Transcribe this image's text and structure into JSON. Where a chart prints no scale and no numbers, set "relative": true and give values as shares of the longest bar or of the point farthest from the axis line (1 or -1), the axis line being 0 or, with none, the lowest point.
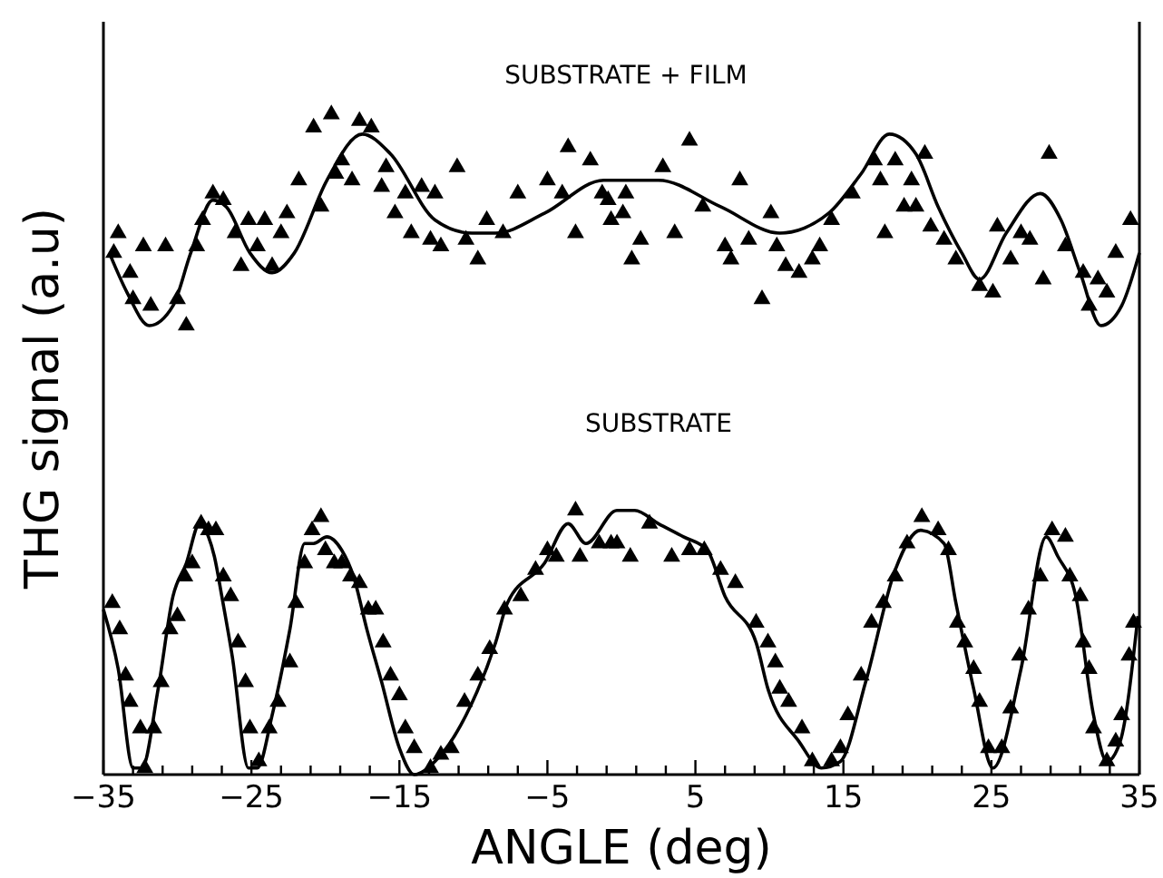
{
  "chart_data": {
    "type": "scatter",
    "xlabel": "ANGLE (deg)",
    "ylabel": "THG signal (a.u)",
    "relative": true,
    "grid": false,
    "line_style": "solid",
    "annotations": [
      "SUBSTRATE + FILM",
      "SUBSTRATE"
    ],
    "xlim": [
      -35,
      35
    ],
    "xticks": [
      -35,
      {
        "value": -33,
        "label": null
      },
      {
        "value": -31,
        "label": null
      },
      {
        "value": -29,
        "label": null
      },
      {
        "value": -27,
        "label": null
      },
      -25,
      {
        "value": -23,
        "label": null
      },
      {
        "value": -21,
        "label": null
      },
      {
        "value": -19,
        "label": null
      },
      {
        "value": -17,
        "label": null
      },
      -15,
      {
        "value": -13,
        "label": null
      },
      {
        "value": -11,
        "label": null
      },
      {
        "value": -9,
        "label": null
      },
      {
        "value": -7,
        "label": null
      },
      -5,
      {
        "value": -3,
        "label": null
      },
      {
        "value": -1,
        "label": null
      },
      {
        "value": 1,
        "label": null
      },
      {
        "value": 3,
        "label": null
      },
      5,
      {
        "value": 7,
        "label": null
      },
      {
        "value": 9,
        "label": null
      },
      {
        "value": 11,
        "label": null
      },
      {
        "value": 13,
        "label": null
      },
      15,
      {
        "value": 17,
        "label": null
      },
      {
        "value": 19,
        "label": null
      },
      {
        "value": 21,
        "label": null
      },
      {
        "value": 23,
        "label": null
      },
      25,
      {
        "value": 27,
        "label": null
      },
      {
        "value": 29,
        "label": null
      },
      {
        "value": 31,
        "label": null
      },
      {
        "value": 33,
        "label": null
      },
      35
    ],
    "series": [
      {
        "marker": "triangle",
        "color": "#000000",
        "x": [
          -34.0,
          -32.3,
          -30.8,
          -34.3,
          -33.2,
          -33.0,
          -31.8,
          -30.0,
          -29.4,
          -28.7,
          -27.6,
          -26.9,
          -28.3,
          -26.1,
          -25.2,
          -24.1,
          -25.7,
          -24.6,
          -23.6,
          -23.0,
          -22.6,
          -21.8,
          -20.3,
          -20.8,
          -19.6,
          -17.7,
          -16.9,
          -18.9,
          -19.3,
          -18.2,
          -16.2,
          -15.9,
          -15.3,
          -14.6,
          -13.5,
          -12.6,
          -14.2,
          -12.9,
          -12.2,
          -11.1,
          -10.5,
          -9.7,
          -9.1,
          -8.0,
          -7.0,
          -5.0,
          -4.0,
          -3.6,
          -3.1,
          -2.1,
          -1.3,
          -0.7,
          4.6,
          2.8,
          0.3,
          -0.9,
          0.1,
          1.3,
          0.7,
          3.6,
          5.5,
          8.0,
          7.0,
          7.4,
          8.6,
          10.1,
          10.5,
          11.1,
          12.0,
          12.9,
          13.4,
          9.5,
          14.2,
          15.6,
          17.1,
          17.5,
          18.5,
          19.6,
          19.1,
          20.5,
          19.9,
          20.9,
          17.8,
          21.8,
          22.6,
          24.2,
          25.1,
          25.4,
          26.3,
          27.0,
          27.6,
          28.9,
          28.5,
          30.0,
          31.2,
          32.2,
          31.6,
          33.4,
          34.4,
          32.8
        ],
        "values": [
          0.82,
          0.8,
          0.8,
          0.79,
          0.76,
          0.72,
          0.71,
          0.72,
          0.68,
          0.8,
          0.88,
          0.87,
          0.84,
          0.82,
          0.84,
          0.84,
          0.77,
          0.8,
          0.77,
          0.82,
          0.85,
          0.9,
          0.86,
          0.98,
          1.0,
          0.99,
          0.98,
          0.93,
          0.91,
          0.9,
          0.89,
          0.92,
          0.85,
          0.88,
          0.89,
          0.88,
          0.82,
          0.81,
          0.8,
          0.92,
          0.81,
          0.78,
          0.84,
          0.82,
          0.88,
          0.9,
          0.88,
          0.95,
          0.82,
          0.93,
          0.88,
          0.84,
          0.96,
          0.92,
          0.88,
          0.87,
          0.85,
          0.81,
          0.78,
          0.82,
          0.86,
          0.9,
          0.8,
          0.78,
          0.81,
          0.85,
          0.8,
          0.77,
          0.76,
          0.78,
          0.8,
          0.72,
          0.84,
          0.88,
          0.93,
          0.9,
          0.93,
          0.9,
          0.86,
          0.94,
          0.86,
          0.83,
          0.82,
          0.81,
          0.78,
          0.74,
          0.73,
          0.83,
          0.78,
          0.82,
          0.81,
          0.94,
          0.75,
          0.8,
          0.76,
          0.75,
          0.71,
          0.79,
          0.84,
          0.73
        ]
      },
      {
        "type": "line",
        "color": "#000000",
        "x": [
          -34.6,
          -33.4,
          -31.9,
          -30.3,
          -29.1,
          -27.6,
          -26.7,
          -25.1,
          -23.6,
          -22.1,
          -19.9,
          -17.5,
          -15.6,
          -12.6,
          -10.1,
          -8.5,
          -5.2,
          -1.2,
          2.5,
          6.7,
          10.7,
          14.0,
          16.2,
          18.1,
          19.9,
          21.4,
          23.0,
          24.2,
          26.0,
          28.3,
          29.7,
          31.0,
          32.4,
          33.8,
          35
        ],
        "values": [
          0.79,
          0.73,
          0.68,
          0.71,
          0.79,
          0.87,
          0.86,
          0.79,
          0.76,
          0.79,
          0.9,
          0.97,
          0.94,
          0.84,
          0.82,
          0.82,
          0.85,
          0.9,
          0.9,
          0.86,
          0.82,
          0.85,
          0.91,
          0.97,
          0.94,
          0.86,
          0.79,
          0.75,
          0.82,
          0.88,
          0.84,
          0.76,
          0.68,
          0.71,
          0.79
        ]
      },
      {
        "marker": "triangle",
        "color": "#000000",
        "x": [
          -34.4,
          -33.9,
          -33.5,
          -33.2,
          -32.5,
          -32.2,
          -31.6,
          -31.1,
          -30.5,
          -30.0,
          -29.5,
          -29.0,
          -28.4,
          -27.9,
          -27.4,
          -26.9,
          -26.4,
          -25.9,
          -25.4,
          -25.1,
          -24.5,
          -23.8,
          -23.2,
          -22.4,
          -22.0,
          -21.4,
          -20.9,
          -20.3,
          -20.0,
          -19.4,
          -18.9,
          -18.3,
          -17.7,
          -17.1,
          -16.6,
          -16.1,
          -15.6,
          -15.0,
          -14.6,
          -14.0,
          -12.9,
          -12.2,
          -11.5,
          -10.6,
          -9.7,
          -8.9,
          -7.9,
          -6.8,
          -5.8,
          -5.0,
          -4.4,
          -3.1,
          -2.8,
          -1.5,
          -0.7,
          -0.3,
          0.6,
          1.9,
          3.4,
          4.6,
          5.6,
          6.7,
          7.7,
          9.1,
          9.9,
          10.4,
          10.7,
          11.3,
          12.2,
          12.9,
          14.2,
          14.8,
          15.3,
          16.2,
          16.9,
          17.7,
          18.5,
          19.3,
          20.3,
          21.4,
          22.1,
          22.7,
          23.2,
          23.8,
          24.2,
          24.8,
          25.7,
          26.3,
          26.9,
          27.5,
          28.3,
          29.1,
          30.0,
          30.3,
          31.0,
          31.2,
          31.6,
          31.9,
          32.8,
          33.4,
          33.8,
          34.3,
          34.6
        ],
        "values": [
          0.26,
          0.22,
          0.15,
          0.11,
          0.07,
          0.01,
          0.07,
          0.14,
          0.22,
          0.24,
          0.3,
          0.32,
          0.38,
          0.37,
          0.37,
          0.3,
          0.27,
          0.2,
          0.14,
          0.07,
          0.02,
          0.07,
          0.11,
          0.17,
          0.26,
          0.32,
          0.37,
          0.39,
          0.34,
          0.32,
          0.32,
          0.3,
          0.29,
          0.25,
          0.25,
          0.2,
          0.15,
          0.12,
          0.07,
          0.04,
          0.01,
          0.03,
          0.04,
          0.11,
          0.15,
          0.19,
          0.25,
          0.27,
          0.31,
          0.34,
          0.33,
          0.4,
          0.33,
          0.35,
          0.35,
          0.35,
          0.33,
          0.38,
          0.33,
          0.34,
          0.34,
          0.31,
          0.29,
          0.23,
          0.2,
          0.17,
          0.13,
          0.11,
          0.07,
          0.02,
          0.02,
          0.04,
          0.09,
          0.15,
          0.23,
          0.26,
          0.3,
          0.35,
          0.39,
          0.37,
          0.34,
          0.23,
          0.2,
          0.16,
          0.11,
          0.04,
          0.04,
          0.1,
          0.18,
          0.25,
          0.3,
          0.37,
          0.36,
          0.3,
          0.27,
          0.2,
          0.16,
          0.07,
          0.02,
          0.05,
          0.09,
          0.18,
          0.23
        ]
      },
      {
        "type": "line",
        "color": "#000000",
        "x": [
          -35,
          -34.0,
          -33.0,
          -32.4,
          -31.3,
          -30.3,
          -29.4,
          -28.5,
          -27.9,
          -27.5,
          -27.0,
          -26.3,
          -25.2,
          -24.6,
          -23.6,
          -22.4,
          -21.4,
          -20.8,
          -19.9,
          -18.9,
          -18.1,
          -17.2,
          -16.2,
          -15.0,
          -14.0,
          -12.6,
          -10.5,
          -8.5,
          -7.7,
          -5.2,
          -3.6,
          -2.4,
          -0.3,
          0.9,
          2.5,
          4.2,
          5.8,
          7.0,
          9.1,
          9.9,
          12.0,
          13.5,
          14.8,
          16.5,
          18.5,
          20.2,
          21.8,
          22.6,
          23.8,
          25.1,
          27.0,
          28.7,
          29.5,
          30.7,
          31.9,
          32.8,
          33.7,
          34.9
        ],
        "values": [
          0.25,
          0.16,
          0.01,
          0.01,
          0.13,
          0.27,
          0.32,
          0.38,
          0.36,
          0.33,
          0.27,
          0.18,
          0.01,
          0.01,
          0.09,
          0.22,
          0.35,
          0.35,
          0.36,
          0.34,
          0.3,
          0.22,
          0.14,
          0.04,
          0.0,
          0.02,
          0.09,
          0.2,
          0.26,
          0.32,
          0.38,
          0.35,
          0.4,
          0.4,
          0.38,
          0.36,
          0.34,
          0.27,
          0.2,
          0.13,
          0.05,
          0.01,
          0.02,
          0.14,
          0.31,
          0.37,
          0.35,
          0.26,
          0.13,
          0.01,
          0.16,
          0.36,
          0.33,
          0.27,
          0.09,
          0.02,
          0.05,
          0.24
        ]
      }
    ]
  }
}
